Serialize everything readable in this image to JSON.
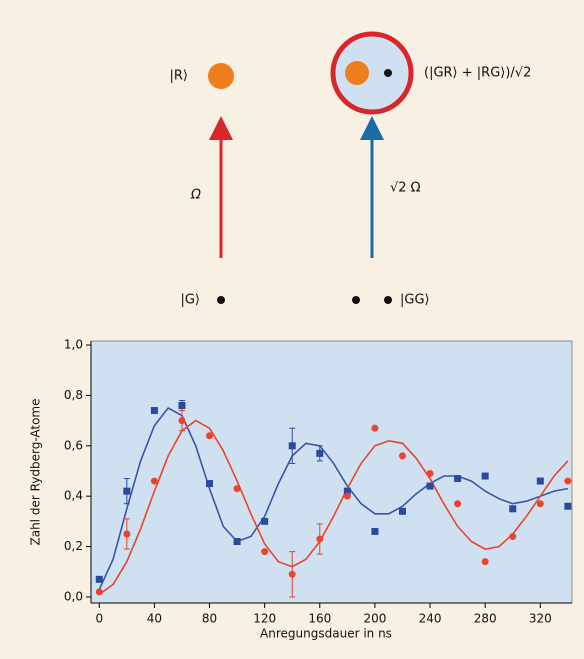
{
  "diagram": {
    "single_excited": "|R⟩",
    "single_rabi": "Ω",
    "single_ground": "|G⟩",
    "pair_excited": "(|GR⟩ + |RG⟩)/√2",
    "pair_rabi": "√2 Ω",
    "pair_ground": "|GG⟩"
  },
  "chart_data": {
    "type": "scatter",
    "x_label": "Anregungsdauer in ns",
    "y_label": "Zahl der Rydberg-Atome",
    "xlim": [
      -6,
      343
    ],
    "ylim": [
      -0.024,
      1.016
    ],
    "xticks": [
      0,
      40,
      80,
      120,
      160,
      200,
      240,
      280,
      320
    ],
    "yticks": [
      {
        "value": 0,
        "label": "0,0"
      },
      {
        "value": 0.2,
        "label": "0,2"
      },
      {
        "value": 0.4,
        "label": "0,4"
      },
      {
        "value": 0.6,
        "label": "0,6"
      },
      {
        "value": 0.8,
        "label": "0,8"
      },
      {
        "value": 1.0,
        "label": "1,0"
      }
    ],
    "background": "#cfe0f1",
    "x": [
      0,
      20,
      40,
      60,
      80,
      100,
      120,
      140,
      160,
      180,
      200,
      220,
      240,
      260,
      280,
      300,
      320,
      340
    ],
    "series": [
      {
        "color": "#2c4a9c",
        "marker": "square",
        "values": [
          0.07,
          0.42,
          0.74,
          0.76,
          0.45,
          0.22,
          0.3,
          0.6,
          0.57,
          0.42,
          0.26,
          0.34,
          0.44,
          0.47,
          0.48,
          0.35,
          0.46,
          0.36
        ],
        "errors": [
          null,
          0.05,
          null,
          0.02,
          null,
          null,
          null,
          0.07,
          0.03,
          null,
          null,
          null,
          null,
          null,
          null,
          null,
          null,
          null
        ]
      },
      {
        "color": "#e8452c",
        "marker": "circle",
        "values": [
          0.02,
          0.25,
          0.46,
          0.7,
          0.64,
          0.43,
          0.18,
          0.09,
          0.23,
          0.4,
          0.67,
          0.56,
          0.49,
          0.37,
          0.14,
          0.24,
          0.37,
          0.46
        ],
        "errors": [
          null,
          0.06,
          null,
          0.04,
          null,
          null,
          null,
          0.09,
          0.06,
          null,
          null,
          null,
          null,
          null,
          null,
          null,
          null,
          null
        ]
      }
    ],
    "fits": [
      {
        "color": "#3a55a6",
        "x": [
          0,
          10,
          20,
          30,
          40,
          50,
          60,
          70,
          80,
          90,
          100,
          110,
          120,
          130,
          140,
          150,
          160,
          170,
          180,
          190,
          200,
          210,
          220,
          230,
          240,
          250,
          260,
          270,
          280,
          290,
          300,
          310,
          320,
          330,
          340
        ],
        "values": [
          0.03,
          0.15,
          0.35,
          0.54,
          0.68,
          0.75,
          0.72,
          0.6,
          0.43,
          0.28,
          0.22,
          0.24,
          0.32,
          0.45,
          0.56,
          0.61,
          0.6,
          0.53,
          0.44,
          0.37,
          0.33,
          0.33,
          0.36,
          0.41,
          0.45,
          0.48,
          0.48,
          0.46,
          0.42,
          0.39,
          0.37,
          0.38,
          0.4,
          0.42,
          0.43
        ]
      },
      {
        "color": "#e8452c",
        "x": [
          0,
          10,
          20,
          30,
          40,
          50,
          60,
          70,
          80,
          90,
          100,
          110,
          120,
          130,
          140,
          150,
          160,
          170,
          180,
          190,
          200,
          210,
          220,
          230,
          240,
          250,
          260,
          270,
          280,
          290,
          300,
          310,
          320,
          330,
          340
        ],
        "values": [
          0.01,
          0.05,
          0.14,
          0.27,
          0.42,
          0.56,
          0.66,
          0.7,
          0.67,
          0.58,
          0.46,
          0.33,
          0.21,
          0.14,
          0.12,
          0.15,
          0.22,
          0.32,
          0.43,
          0.53,
          0.6,
          0.62,
          0.61,
          0.55,
          0.47,
          0.37,
          0.28,
          0.22,
          0.19,
          0.2,
          0.25,
          0.32,
          0.4,
          0.48,
          0.54
        ]
      }
    ]
  }
}
